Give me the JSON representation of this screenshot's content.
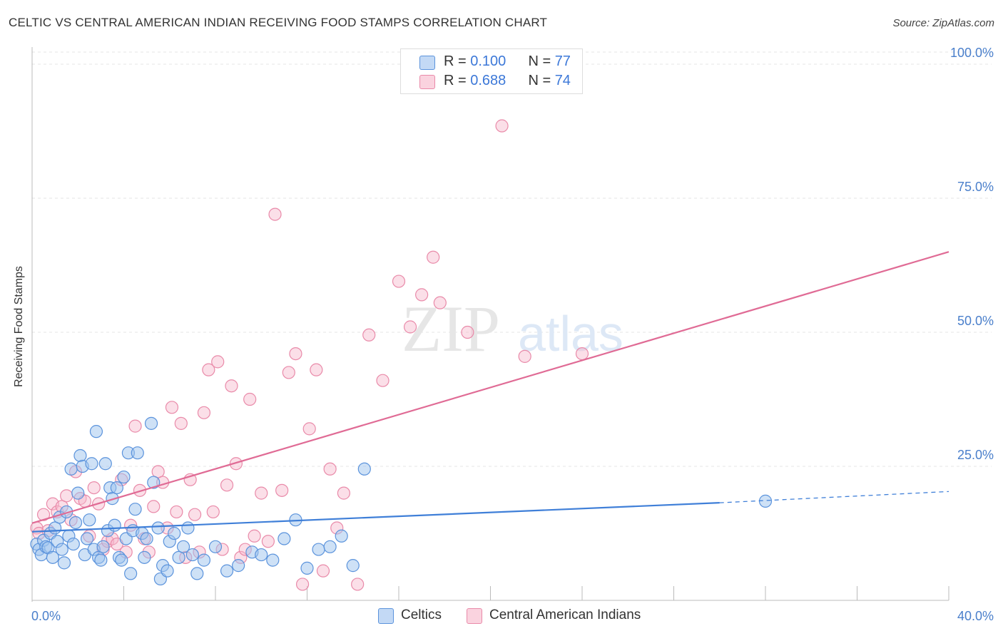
{
  "header": {
    "title": "CELTIC VS CENTRAL AMERICAN INDIAN RECEIVING FOOD STAMPS CORRELATION CHART",
    "source": "Source: ZipAtlas.com"
  },
  "watermark": {
    "zip": "ZIP",
    "atlas": "atlas"
  },
  "colors": {
    "blue_fill": "#9ec3ee",
    "blue_stroke": "#5b93dc",
    "blue_line": "#3f7fd8",
    "pink_fill": "#f6b8cb",
    "pink_stroke": "#e98aa9",
    "pink_line": "#e06b95",
    "axis_label": "#4a7fcb"
  },
  "legend_top": {
    "rows": [
      {
        "r_label": "R = ",
        "r_value": "0.100",
        "n_label": "N = ",
        "n_value": "77"
      },
      {
        "r_label": "R = ",
        "r_value": "0.688",
        "n_label": "N = ",
        "n_value": "74"
      }
    ]
  },
  "legend_bottom": {
    "series1": "Celtics",
    "series2": "Central American Indians"
  },
  "chart_data": {
    "type": "scatter",
    "title": "CELTIC VS CENTRAL AMERICAN INDIAN RECEIVING FOOD STAMPS CORRELATION CHART",
    "xlabel": "",
    "ylabel": "Receiving Food Stamps",
    "xlim": [
      0,
      40
    ],
    "ylim": [
      0,
      102
    ],
    "y_ticks": [
      25,
      50,
      75,
      100
    ],
    "y_tick_labels": [
      "25.0%",
      "50.0%",
      "75.0%",
      "100.0%"
    ],
    "x_tick_labels": [
      "0.0%",
      "40.0%"
    ],
    "legend": "top-center",
    "grid": true,
    "series": [
      {
        "name": "Celtics",
        "R": 0.1,
        "N": 77,
        "trend": {
          "x": [
            0,
            30
          ],
          "y": [
            12.8,
            18.2
          ],
          "extrapolate_to_x": 40,
          "extrapolate_y": 20.3
        },
        "points": [
          [
            0.2,
            10.5
          ],
          [
            0.3,
            9.5
          ],
          [
            0.4,
            8.5
          ],
          [
            0.5,
            11.2
          ],
          [
            0.6,
            10.0
          ],
          [
            0.7,
            9.8
          ],
          [
            0.8,
            12.5
          ],
          [
            0.9,
            8.0
          ],
          [
            1.0,
            13.5
          ],
          [
            1.1,
            11.0
          ],
          [
            1.2,
            15.5
          ],
          [
            1.3,
            9.5
          ],
          [
            1.4,
            7.0
          ],
          [
            1.5,
            16.5
          ],
          [
            1.6,
            12.0
          ],
          [
            1.7,
            24.5
          ],
          [
            1.8,
            10.5
          ],
          [
            1.9,
            14.5
          ],
          [
            2.0,
            20.0
          ],
          [
            2.1,
            27.0
          ],
          [
            2.2,
            25.0
          ],
          [
            2.3,
            8.5
          ],
          [
            2.4,
            11.5
          ],
          [
            2.5,
            15.0
          ],
          [
            2.6,
            25.5
          ],
          [
            2.7,
            9.5
          ],
          [
            2.8,
            31.5
          ],
          [
            2.9,
            8.0
          ],
          [
            3.0,
            7.5
          ],
          [
            3.1,
            10.0
          ],
          [
            3.2,
            25.5
          ],
          [
            3.3,
            13.0
          ],
          [
            3.4,
            21.0
          ],
          [
            3.5,
            19.0
          ],
          [
            3.6,
            14.0
          ],
          [
            3.7,
            21.0
          ],
          [
            3.8,
            8.0
          ],
          [
            3.9,
            7.5
          ],
          [
            4.0,
            23.0
          ],
          [
            4.1,
            11.5
          ],
          [
            4.2,
            27.5
          ],
          [
            4.3,
            5.0
          ],
          [
            4.4,
            13.0
          ],
          [
            4.5,
            17.0
          ],
          [
            4.6,
            27.5
          ],
          [
            4.8,
            12.5
          ],
          [
            4.9,
            8.0
          ],
          [
            5.0,
            11.5
          ],
          [
            5.2,
            33.0
          ],
          [
            5.3,
            22.0
          ],
          [
            5.5,
            13.5
          ],
          [
            5.6,
            4.0
          ],
          [
            5.7,
            6.5
          ],
          [
            5.9,
            5.5
          ],
          [
            6.0,
            11.0
          ],
          [
            6.2,
            12.5
          ],
          [
            6.4,
            8.0
          ],
          [
            6.6,
            10.0
          ],
          [
            6.8,
            13.5
          ],
          [
            7.0,
            8.5
          ],
          [
            7.2,
            5.0
          ],
          [
            7.5,
            7.5
          ],
          [
            8.0,
            10.0
          ],
          [
            8.5,
            5.5
          ],
          [
            9.0,
            6.5
          ],
          [
            9.6,
            9.0
          ],
          [
            10.0,
            8.5
          ],
          [
            10.5,
            7.5
          ],
          [
            11.0,
            11.5
          ],
          [
            11.5,
            15.0
          ],
          [
            12.0,
            6.0
          ],
          [
            12.5,
            9.5
          ],
          [
            13.0,
            10.0
          ],
          [
            13.5,
            12.0
          ],
          [
            14.0,
            6.5
          ],
          [
            14.5,
            24.5
          ],
          [
            32.0,
            18.5
          ]
        ]
      },
      {
        "name": "Central American Indians",
        "R": 0.688,
        "N": 74,
        "trend": {
          "x": [
            0,
            40
          ],
          "y": [
            14.4,
            65.0
          ]
        },
        "points": [
          [
            0.2,
            13.5
          ],
          [
            0.3,
            12.5
          ],
          [
            0.5,
            16.0
          ],
          [
            0.7,
            13.0
          ],
          [
            0.9,
            18.0
          ],
          [
            1.1,
            16.5
          ],
          [
            1.3,
            17.5
          ],
          [
            1.5,
            19.5
          ],
          [
            1.7,
            15.0
          ],
          [
            1.9,
            24.0
          ],
          [
            2.1,
            19.0
          ],
          [
            2.3,
            18.5
          ],
          [
            2.5,
            12.0
          ],
          [
            2.7,
            21.0
          ],
          [
            2.9,
            18.0
          ],
          [
            3.1,
            9.5
          ],
          [
            3.3,
            11.0
          ],
          [
            3.5,
            11.5
          ],
          [
            3.7,
            10.5
          ],
          [
            3.9,
            22.5
          ],
          [
            4.1,
            9.0
          ],
          [
            4.3,
            14.0
          ],
          [
            4.5,
            32.5
          ],
          [
            4.7,
            20.5
          ],
          [
            4.9,
            11.5
          ],
          [
            5.1,
            9.0
          ],
          [
            5.3,
            17.5
          ],
          [
            5.5,
            24.0
          ],
          [
            5.7,
            22.0
          ],
          [
            5.9,
            13.5
          ],
          [
            6.1,
            36.0
          ],
          [
            6.3,
            16.5
          ],
          [
            6.5,
            33.0
          ],
          [
            6.7,
            8.0
          ],
          [
            6.9,
            22.5
          ],
          [
            7.1,
            16.0
          ],
          [
            7.3,
            9.0
          ],
          [
            7.5,
            35.0
          ],
          [
            7.7,
            43.0
          ],
          [
            7.9,
            16.5
          ],
          [
            8.1,
            44.5
          ],
          [
            8.3,
            9.5
          ],
          [
            8.5,
            21.5
          ],
          [
            8.7,
            40.0
          ],
          [
            8.9,
            25.5
          ],
          [
            9.1,
            8.0
          ],
          [
            9.3,
            9.5
          ],
          [
            9.5,
            37.5
          ],
          [
            9.7,
            12.0
          ],
          [
            10.0,
            20.0
          ],
          [
            10.3,
            11.0
          ],
          [
            10.6,
            72.0
          ],
          [
            10.9,
            20.5
          ],
          [
            11.2,
            42.5
          ],
          [
            11.5,
            46.0
          ],
          [
            11.8,
            3.0
          ],
          [
            12.1,
            32.0
          ],
          [
            12.4,
            43.0
          ],
          [
            12.7,
            5.5
          ],
          [
            13.0,
            24.5
          ],
          [
            13.3,
            13.5
          ],
          [
            13.6,
            20.0
          ],
          [
            14.2,
            3.0
          ],
          [
            14.7,
            49.5
          ],
          [
            15.3,
            41.0
          ],
          [
            16.0,
            59.5
          ],
          [
            16.5,
            51.0
          ],
          [
            17.0,
            57.0
          ],
          [
            17.5,
            64.0
          ],
          [
            17.8,
            55.5
          ],
          [
            19.0,
            50.0
          ],
          [
            20.5,
            88.5
          ],
          [
            21.5,
            45.5
          ],
          [
            24.0,
            46.0
          ]
        ]
      }
    ]
  }
}
